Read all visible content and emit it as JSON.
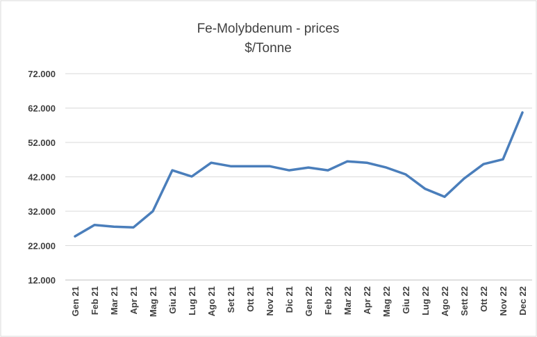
{
  "chart_data": {
    "type": "line",
    "title": "Fe-Molybdenum - prices",
    "subtitle": "$/Tonne",
    "categories": [
      "Gen 21",
      "Feb 21",
      "Mar 21",
      "Apr 21",
      "Mag 21",
      "Giu 21",
      "Lug 21",
      "Ago 21",
      "Set 21",
      "Ott 21",
      "Nov 21",
      "Dic 21",
      "Gen 22",
      "Feb 22",
      "Mar 22",
      "Apr 22",
      "Mag 22",
      "Giu 22",
      "Lug 22",
      "Ago 22",
      "Sett 22",
      "Ott 22",
      "Nov 22",
      "Dec 22"
    ],
    "values": [
      24700,
      28000,
      27500,
      27300,
      32000,
      43900,
      42100,
      46100,
      45100,
      45100,
      45100,
      43900,
      44700,
      43900,
      46500,
      46100,
      44700,
      42700,
      38500,
      36200,
      41500,
      45700,
      47100,
      60700
    ],
    "color": "#4a7ebb",
    "ylim": [
      12000,
      72000
    ],
    "yticks": [
      {
        "value": 12000,
        "label": "12.000"
      },
      {
        "value": 22000,
        "label": "22.000"
      },
      {
        "value": 32000,
        "label": "32.000"
      },
      {
        "value": 42000,
        "label": "42.000"
      },
      {
        "value": 52000,
        "label": "52.000"
      },
      {
        "value": 62000,
        "label": "62.000"
      },
      {
        "value": 72000,
        "label": "72.000"
      }
    ],
    "grid": true
  }
}
